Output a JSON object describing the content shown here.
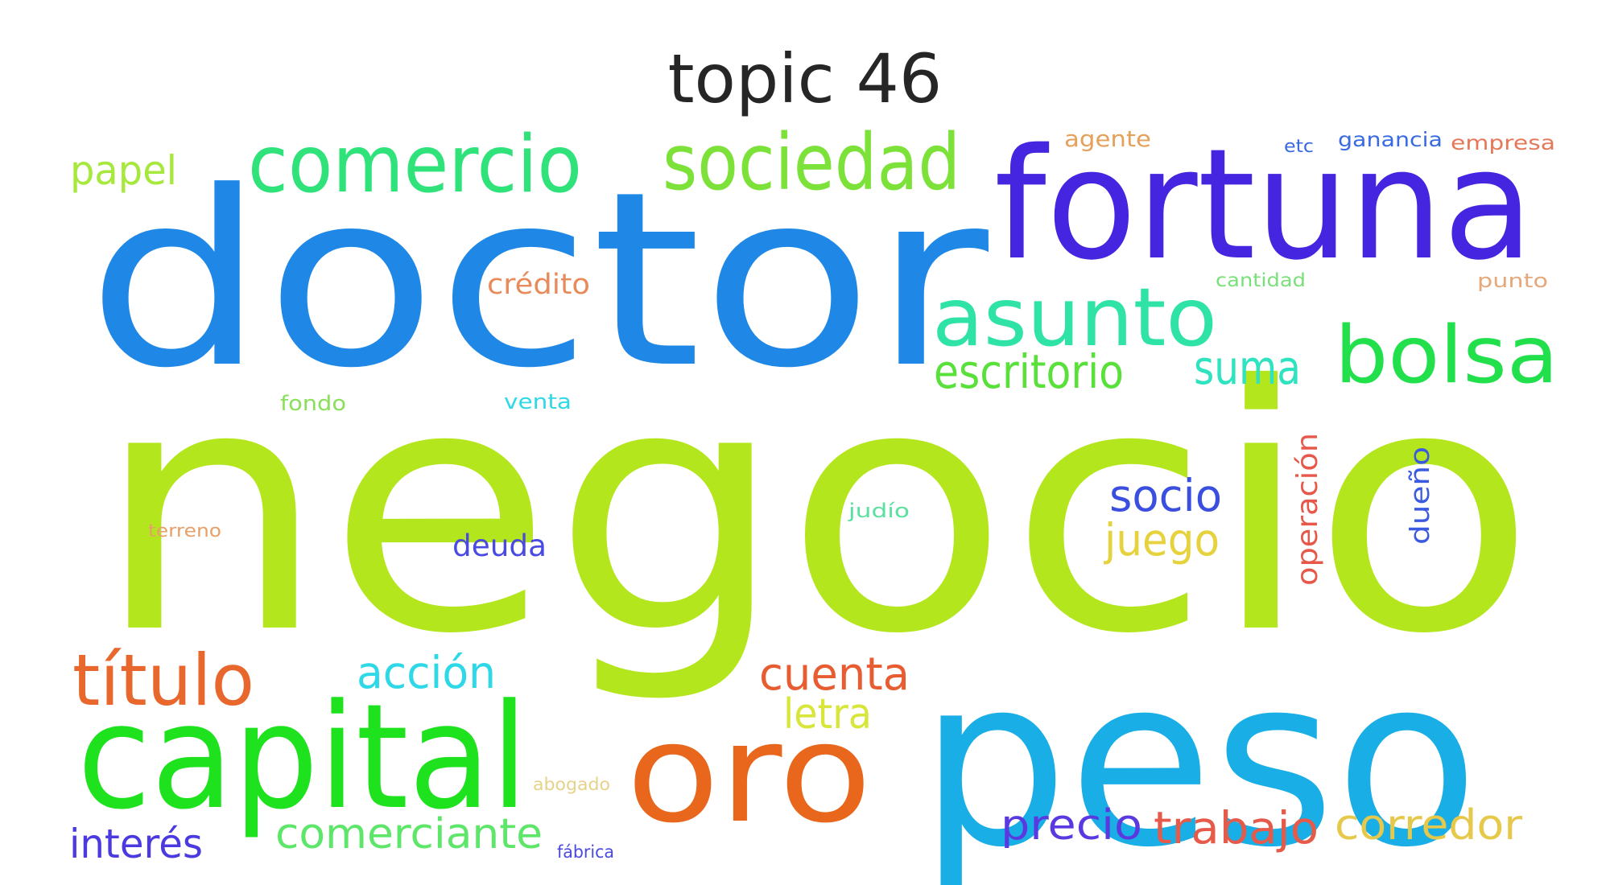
{
  "title": "topic 46",
  "words": [
    {
      "text": "negocio",
      "color": "#b4e61e"
    },
    {
      "text": "doctor",
      "color": "#1f88e6"
    },
    {
      "text": "peso",
      "color": "#1aaee6"
    },
    {
      "text": "fortuna",
      "color": "#4525e0"
    },
    {
      "text": "capital",
      "color": "#1ee21e"
    },
    {
      "text": "oro",
      "color": "#e8671c"
    },
    {
      "text": "comercio",
      "color": "#2fe27a"
    },
    {
      "text": "sociedad",
      "color": "#7ce23a"
    },
    {
      "text": "asunto",
      "color": "#2fe3a6"
    },
    {
      "text": "bolsa",
      "color": "#22e04c"
    },
    {
      "text": "título",
      "color": "#e8672c"
    },
    {
      "text": "escritorio",
      "color": "#59e03a"
    },
    {
      "text": "suma",
      "color": "#2fe3c0"
    },
    {
      "text": "papel",
      "color": "#a6e83c"
    },
    {
      "text": "acción",
      "color": "#2fd8e6"
    },
    {
      "text": "cuenta",
      "color": "#e85c32"
    },
    {
      "text": "socio",
      "color": "#3a4fe0"
    },
    {
      "text": "juego",
      "color": "#e6d23c"
    },
    {
      "text": "letra",
      "color": "#d8e63c"
    },
    {
      "text": "comerciante",
      "color": "#5ee66a"
    },
    {
      "text": "precio",
      "color": "#5a3ae0"
    },
    {
      "text": "trabajo",
      "color": "#e65a4a"
    },
    {
      "text": "corredor",
      "color": "#e6c84a"
    },
    {
      "text": "interés",
      "color": "#4a3ae0"
    },
    {
      "text": "deuda",
      "color": "#4a4ae0"
    },
    {
      "text": "crédito",
      "color": "#e88a5a"
    },
    {
      "text": "operación",
      "color": "#e6584a"
    },
    {
      "text": "dueño",
      "color": "#3a5ae0"
    },
    {
      "text": "agente",
      "color": "#e6a05a"
    },
    {
      "text": "ganancia",
      "color": "#3a6ae0"
    },
    {
      "text": "empresa",
      "color": "#e6785a"
    },
    {
      "text": "etc",
      "color": "#3a6ae0"
    },
    {
      "text": "cantidad",
      "color": "#7ae07a"
    },
    {
      "text": "punto",
      "color": "#e6a87a"
    },
    {
      "text": "fondo",
      "color": "#8ae05a"
    },
    {
      "text": "venta",
      "color": "#2fd8e6"
    },
    {
      "text": "judío",
      "color": "#5ae0a0"
    },
    {
      "text": "terreno",
      "color": "#e6a06a"
    },
    {
      "text": "abogado",
      "color": "#e6d28a"
    },
    {
      "text": "fábrica",
      "color": "#4a4ae0"
    }
  ]
}
